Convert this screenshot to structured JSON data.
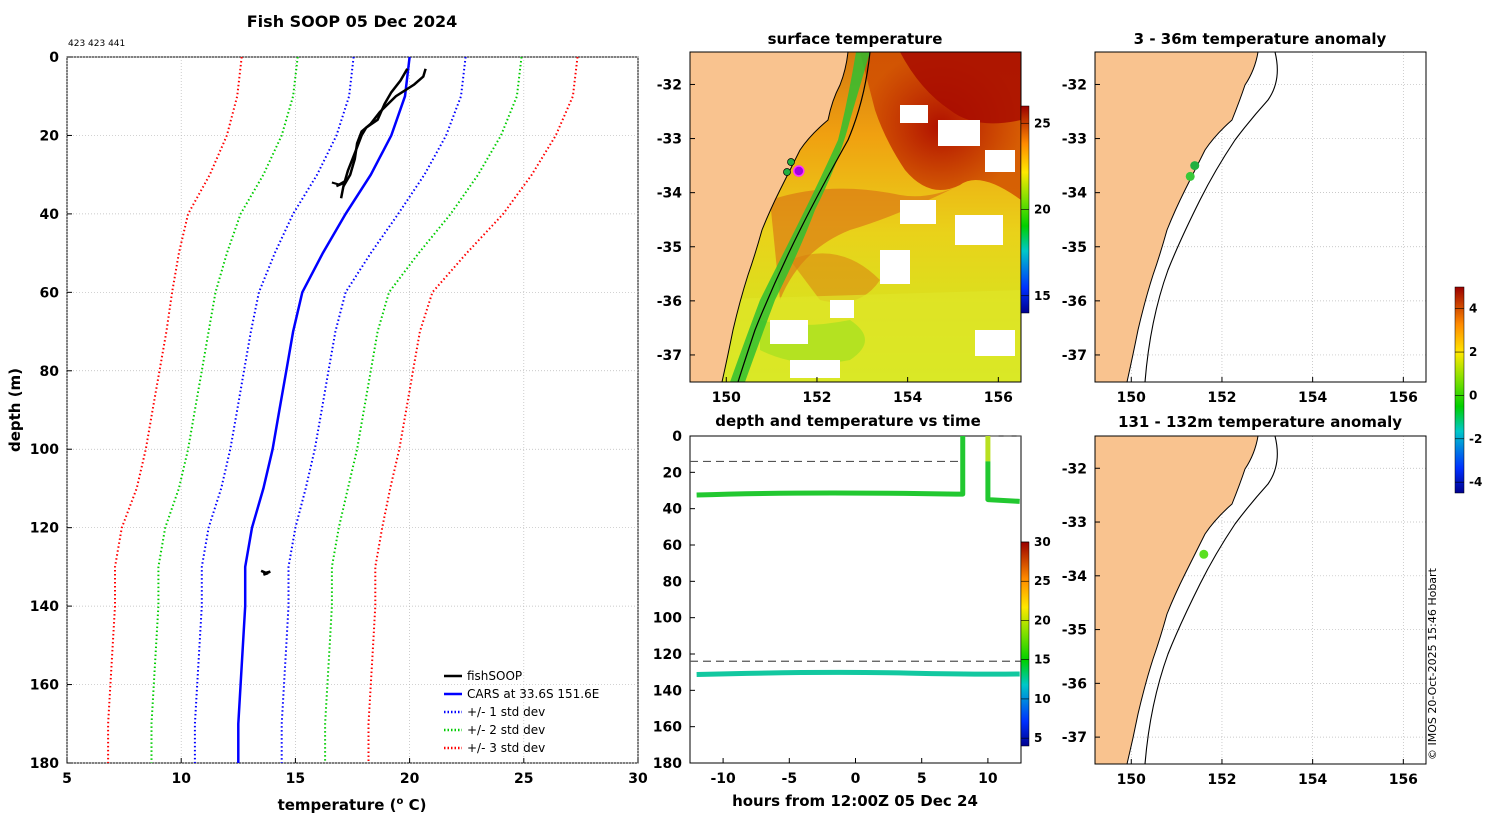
{
  "header": {
    "title": "Fish SOOP 05 Dec 2024",
    "ids": "423 423 441",
    "credit": "© IMOS 20-Oct-2025 15:46 Hobart"
  },
  "chart_data": [
    {
      "name": "profile",
      "type": "line",
      "xlabel": "temperature (o C)",
      "xlabel_main": "temperature (",
      "xlabel_sup": "o",
      "xlabel_end": " C)",
      "ylabel": "depth (m)",
      "xlim": [
        5,
        30
      ],
      "ylim": [
        0,
        180
      ],
      "xticks": [
        5,
        10,
        15,
        20,
        25,
        30
      ],
      "yticks": [
        0,
        20,
        40,
        60,
        80,
        100,
        120,
        140,
        160,
        180
      ],
      "grid": true,
      "legend_position": "bottom-right",
      "legend": [
        {
          "label": "fishSOOP",
          "color": "#000000",
          "style": "solid"
        },
        {
          "label": "CARS at 33.6S 151.6E",
          "color": "#0000ff",
          "style": "solid"
        },
        {
          "label": "+/- 1 std dev",
          "color": "#0000ff",
          "style": "dotted"
        },
        {
          "label": "+/- 2 std dev",
          "color": "#00cc00",
          "style": "dotted"
        },
        {
          "label": "+/- 3 std dev",
          "color": "#ff0000",
          "style": "dotted"
        }
      ],
      "depth": [
        0,
        10,
        20,
        30,
        40,
        50,
        60,
        70,
        80,
        90,
        100,
        110,
        120,
        130,
        140,
        150,
        160,
        170,
        180
      ],
      "cars_mean": [
        20.0,
        19.8,
        19.2,
        18.3,
        17.2,
        16.2,
        15.3,
        14.9,
        14.6,
        14.3,
        14.0,
        13.6,
        13.1,
        12.8,
        12.8,
        12.7,
        12.6,
        12.5,
        12.5
      ],
      "std_dev": [
        2.45,
        2.45,
        2.4,
        2.35,
        2.3,
        2.1,
        1.9,
        1.85,
        1.85,
        1.85,
        1.85,
        1.85,
        1.9,
        1.9,
        1.9,
        1.9,
        1.9,
        1.9,
        1.9
      ],
      "fishsoop_down": {
        "t": [
          19.9,
          19.6,
          19.2,
          18.9,
          18.6,
          18.1,
          17.9,
          17.7,
          17.5,
          17.3,
          17.2,
          17.1,
          17.0
        ],
        "d": [
          3,
          6,
          9,
          12,
          16,
          18,
          20,
          23,
          26,
          29,
          31,
          33,
          36
        ]
      },
      "fishsoop_up": {
        "t": [
          17.1,
          17.4,
          17.6,
          17.7,
          17.9,
          18.3,
          18.7,
          19.4,
          20.2,
          20.6,
          20.7
        ],
        "d": [
          33,
          30,
          26,
          22,
          19,
          17,
          14,
          10,
          7,
          5,
          3
        ]
      },
      "fishsoop_deep": {
        "t": [
          13.5,
          13.7,
          13.9,
          13.6,
          13.8
        ],
        "d": [
          131,
          131.5,
          131.2,
          132,
          131.6
        ]
      }
    },
    {
      "name": "surface-map",
      "type": "heatmap",
      "title": "surface temperature",
      "xlim": [
        149.2,
        156.5
      ],
      "ylim": [
        -37.5,
        -31.4
      ],
      "xticks": [
        150,
        152,
        154,
        156
      ],
      "yticks": [
        -32,
        -33,
        -34,
        -35,
        -36,
        -37
      ],
      "colorbar": {
        "ticks": [
          15,
          20,
          25
        ],
        "range": [
          14,
          26
        ]
      },
      "marker": {
        "lon": 151.6,
        "lat": -33.6
      }
    },
    {
      "name": "time-series",
      "type": "scatter",
      "title": "depth and temperature vs time",
      "xlabel": "hours from 12:00Z 05 Dec 24",
      "xlim": [
        -12.5,
        12.5
      ],
      "ylim": [
        0,
        180
      ],
      "xticks": [
        -10,
        -5,
        0,
        5,
        10
      ],
      "yticks": [
        0,
        20,
        40,
        60,
        80,
        100,
        120,
        140,
        160,
        180
      ],
      "reference_depths": [
        14,
        124
      ],
      "colorbar": {
        "ticks": [
          5,
          10,
          15,
          20,
          25,
          30
        ],
        "range": [
          4,
          30
        ]
      },
      "shallow_logger": {
        "t_start": -12,
        "t_end": 8.1,
        "depth": 32,
        "temp": 18.5
      },
      "deep_logger": {
        "t_start": -12,
        "t_end": 12.4,
        "depth": 131,
        "temp": 14.8
      }
    },
    {
      "name": "anomaly-map-shallow",
      "type": "scatter",
      "title": "3 - 36m temperature anomaly",
      "xlim": [
        149.2,
        156.5
      ],
      "ylim": [
        -37.5,
        -31.4
      ],
      "xticks": [
        150,
        152,
        154,
        156
      ],
      "yticks": [
        -32,
        -33,
        -34,
        -35,
        -36,
        -37
      ],
      "points": [
        {
          "lon": 151.4,
          "lat": -33.5,
          "anomaly": 0.3
        },
        {
          "lon": 151.3,
          "lat": -33.7,
          "anomaly": 0.5
        }
      ]
    },
    {
      "name": "anomaly-map-deep",
      "type": "scatter",
      "title": "131 - 132m temperature anomaly",
      "xlim": [
        149.2,
        156.5
      ],
      "ylim": [
        -37.5,
        -31.4
      ],
      "xticks": [
        150,
        152,
        154,
        156
      ],
      "yticks": [
        -32,
        -33,
        -34,
        -35,
        -36,
        -37
      ],
      "points": [
        {
          "lon": 151.6,
          "lat": -33.6,
          "anomaly": 1.2
        }
      ]
    },
    {
      "name": "anomaly-colorbar",
      "type": "heatmap",
      "ticks": [
        4,
        2,
        0,
        -2,
        -4
      ],
      "range": [
        -4.5,
        5
      ]
    }
  ],
  "colors": {
    "land": "#f9c38f",
    "coast": "#000000",
    "grid": "#b8b8b8"
  }
}
